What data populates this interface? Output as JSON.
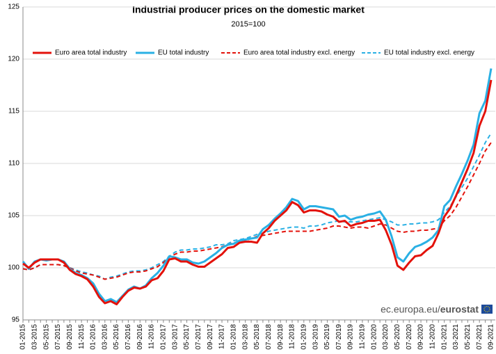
{
  "chart_data": {
    "type": "line",
    "title": "Industrial producer prices on the domestic market",
    "subtitle": "2015=100",
    "source_prefix": "ec.europa.eu/",
    "source_brand": "eurostat",
    "categories": [
      "01-2015",
      null,
      "03-2015",
      null,
      "05-2015",
      null,
      "07-2015",
      null,
      "09-2015",
      null,
      "11-2015",
      null,
      "01-2016",
      null,
      "03-2016",
      null,
      "05-2016",
      null,
      "07-2016",
      null,
      "09-2016",
      null,
      "11-2016",
      null,
      "01-2017",
      null,
      "03-2017",
      null,
      "05-2017",
      null,
      "07-2017",
      null,
      "09-2017",
      null,
      "11-2017",
      null,
      "01-2018",
      null,
      "03-2018",
      null,
      "05-2018",
      null,
      "07-2018",
      null,
      "09-2018",
      null,
      "11-2018",
      null,
      "01-2019",
      null,
      "03-2019",
      null,
      "05-2019",
      null,
      "07-2019",
      null,
      "09-2019",
      null,
      "11-2019",
      null,
      "01-2020",
      null,
      "03-2020",
      null,
      "05-2020",
      null,
      "07-2020",
      null,
      "09-2020",
      null,
      "11-2020",
      null,
      "01-2021",
      null,
      "03-2021",
      null,
      "05-2021",
      null,
      "07-2021",
      null,
      "09-2021"
    ],
    "series": [
      {
        "name": "Euro area total industry",
        "color": "#e3120b",
        "dash": false,
        "values": [
          100.4,
          100.0,
          100.5,
          100.8,
          100.8,
          100.8,
          100.8,
          100.5,
          99.8,
          99.4,
          99.2,
          98.9,
          98.2,
          97.2,
          96.6,
          96.8,
          96.5,
          97.2,
          97.8,
          98.1,
          98.0,
          98.2,
          98.8,
          99.0,
          99.7,
          100.8,
          100.9,
          100.6,
          100.6,
          100.3,
          100.1,
          100.1,
          100.5,
          100.9,
          101.3,
          101.9,
          102.0,
          102.4,
          102.5,
          102.5,
          102.4,
          103.3,
          103.8,
          104.5,
          105.0,
          105.5,
          106.3,
          106.0,
          105.3,
          105.5,
          105.5,
          105.4,
          105.1,
          104.9,
          104.4,
          104.5,
          104.0,
          104.2,
          104.3,
          104.5,
          104.5,
          104.6,
          103.6,
          102.2,
          100.2,
          99.8,
          100.5,
          101.1,
          101.2,
          101.7,
          102.1,
          103.3,
          104.9,
          105.7,
          106.9,
          108.2,
          109.5,
          111.0,
          113.6,
          115.0,
          118.0
        ]
      },
      {
        "name": "EU total industry",
        "color": "#2ab0e4",
        "dash": false,
        "values": [
          100.6,
          99.9,
          100.6,
          100.8,
          100.7,
          100.8,
          100.8,
          100.6,
          99.9,
          99.5,
          99.3,
          99.0,
          98.5,
          97.5,
          96.8,
          97.0,
          96.7,
          97.3,
          97.9,
          98.2,
          98.0,
          98.3,
          99.0,
          99.5,
          100.2,
          101.1,
          101.0,
          100.8,
          100.8,
          100.5,
          100.4,
          100.6,
          101.0,
          101.4,
          101.9,
          102.2,
          102.3,
          102.6,
          102.7,
          102.8,
          102.9,
          103.7,
          104.1,
          104.7,
          105.2,
          105.8,
          106.6,
          106.4,
          105.6,
          105.9,
          105.9,
          105.8,
          105.7,
          105.6,
          104.9,
          105.0,
          104.6,
          104.8,
          104.9,
          105.1,
          105.2,
          105.4,
          104.6,
          103.0,
          101.0,
          100.6,
          101.4,
          102.0,
          102.2,
          102.5,
          102.9,
          103.6,
          105.9,
          106.5,
          107.8,
          109.0,
          110.3,
          111.8,
          114.8,
          116.0,
          119.1
        ]
      },
      {
        "name": "Euro area total industry excl. energy",
        "color": "#e3120b",
        "dash": true,
        "values": [
          99.9,
          99.8,
          100.0,
          100.3,
          100.3,
          100.3,
          100.3,
          100.2,
          100.0,
          99.7,
          99.5,
          99.4,
          99.3,
          99.1,
          98.9,
          99.0,
          99.1,
          99.3,
          99.5,
          99.6,
          99.6,
          99.7,
          99.9,
          100.1,
          100.5,
          101.0,
          101.3,
          101.5,
          101.5,
          101.6,
          101.6,
          101.7,
          101.8,
          101.9,
          102.0,
          102.2,
          102.4,
          102.5,
          102.6,
          102.8,
          103.0,
          103.1,
          103.2,
          103.3,
          103.4,
          103.5,
          103.5,
          103.5,
          103.5,
          103.5,
          103.6,
          103.7,
          103.8,
          104.0,
          104.0,
          103.9,
          103.8,
          103.9,
          103.9,
          103.8,
          104.0,
          104.2,
          104.1,
          103.8,
          103.5,
          103.4,
          103.5,
          103.5,
          103.6,
          103.6,
          103.7,
          103.8,
          104.5,
          105.0,
          105.8,
          106.8,
          107.8,
          108.9,
          110.0,
          111.2,
          112.0
        ]
      },
      {
        "name": "EU total industry excl. energy",
        "color": "#2ab0e4",
        "dash": true,
        "values": [
          99.9,
          99.8,
          100.0,
          100.3,
          100.3,
          100.3,
          100.3,
          100.2,
          100.0,
          99.8,
          99.6,
          99.5,
          99.3,
          99.2,
          98.9,
          99.1,
          99.2,
          99.4,
          99.6,
          99.7,
          99.7,
          99.8,
          100.0,
          100.3,
          100.6,
          101.1,
          101.5,
          101.7,
          101.7,
          101.8,
          101.8,
          101.9,
          102.0,
          102.2,
          102.2,
          102.3,
          102.6,
          102.7,
          102.8,
          103.0,
          103.2,
          103.3,
          103.5,
          103.6,
          103.7,
          103.8,
          103.9,
          103.9,
          103.8,
          104.0,
          104.0,
          104.1,
          104.3,
          104.4,
          104.5,
          104.4,
          104.4,
          104.4,
          104.5,
          104.6,
          104.7,
          104.8,
          104.6,
          104.4,
          104.1,
          104.1,
          104.2,
          104.2,
          104.3,
          104.3,
          104.4,
          104.6,
          105.3,
          105.9,
          106.8,
          107.7,
          108.6,
          109.7,
          110.8,
          112.0,
          112.9
        ]
      }
    ],
    "ylim": [
      95,
      125
    ],
    "yticks": [
      95,
      100,
      105,
      110,
      115,
      120,
      125
    ],
    "grid": true,
    "legend": "top"
  }
}
